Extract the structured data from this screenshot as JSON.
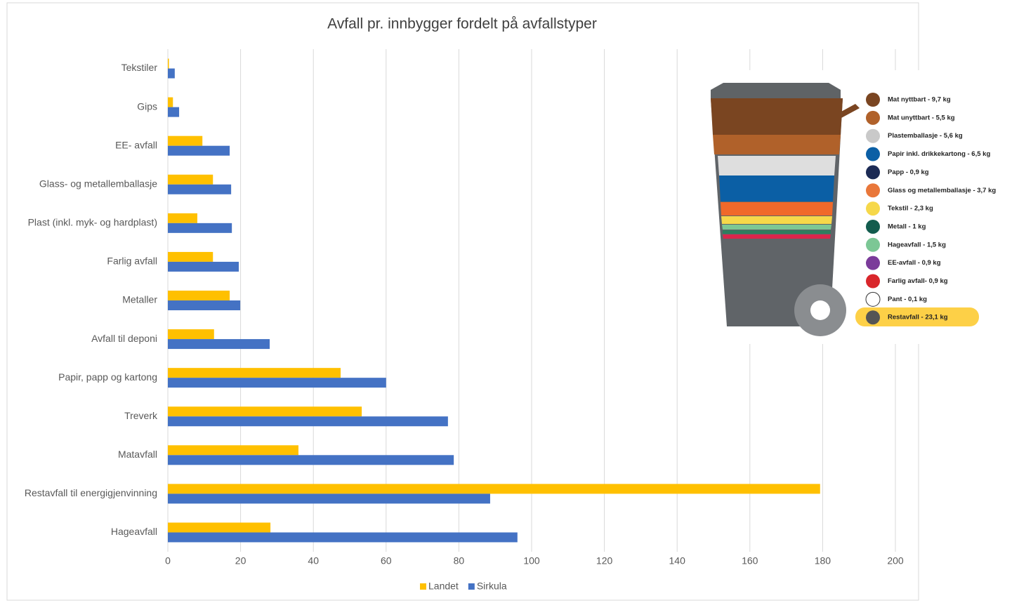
{
  "chart_data": {
    "type": "bar",
    "orientation": "horizontal",
    "title": "Avfall pr. innbygger fordelt på avfallstyper",
    "categories": [
      "Tekstiler",
      "Gips",
      "EE- avfall",
      "Glass- og metallemballasje",
      "Plast (inkl. myk- og hardplast)",
      "Farlig avfall",
      "Metaller",
      "Avfall til deponi",
      "Papir, papp og kartong",
      "Treverk",
      "Matavfall",
      "Restavfall til energigjenvinning",
      "Hageavfall"
    ],
    "series": [
      {
        "name": "Landet",
        "color": "#FFC000",
        "values": [
          0.3,
          1.4,
          9.5,
          12.4,
          8.1,
          12.4,
          17,
          12.7,
          47.5,
          53.3,
          35.9,
          179.3,
          28.2
        ]
      },
      {
        "name": "Sirkula",
        "color": "#4472C4",
        "values": [
          1.9,
          3.1,
          17,
          17.4,
          17.6,
          19.5,
          19.9,
          28,
          60,
          77,
          78.6,
          88.6,
          96.1
        ]
      }
    ],
    "xlim": [
      0,
      200
    ],
    "xticks": [
      0,
      20,
      40,
      60,
      80,
      100,
      120,
      140,
      160,
      180,
      200
    ],
    "grid": true,
    "legend": "bottom"
  },
  "infographic": {
    "items": [
      {
        "label": "Mat nyttbart - 9,7 kg",
        "color": "#7a4521"
      },
      {
        "label": "Mat unyttbart - 5,5 kg",
        "color": "#b0612a"
      },
      {
        "label": "Plastemballasje - 5,6 kg",
        "color": "#c9c9c9"
      },
      {
        "label": "Papir inkl. drikkekartong - 6,5 kg",
        "color": "#0b5fa5"
      },
      {
        "label": "Papp - 0,9 kg",
        "color": "#1c2b55"
      },
      {
        "label": "Glass og metallemballasje - 3,7 kg",
        "color": "#e9773a"
      },
      {
        "label": "Tekstil - 2,3 kg",
        "color": "#f6d84a"
      },
      {
        "label": "Metall - 1 kg",
        "color": "#135c4e"
      },
      {
        "label": "Hageavfall - 1,5 kg",
        "color": "#7cc795"
      },
      {
        "label": "EE-avfall - 0,9 kg",
        "color": "#7b3b9a"
      },
      {
        "label": "Farlig avfall- 0,9 kg",
        "color": "#d9262b"
      },
      {
        "label": "Pant - 0,1 kg",
        "color": "#ffffff"
      },
      {
        "label": "Restavfall - 23,1 kg",
        "color": "#555555"
      }
    ]
  }
}
